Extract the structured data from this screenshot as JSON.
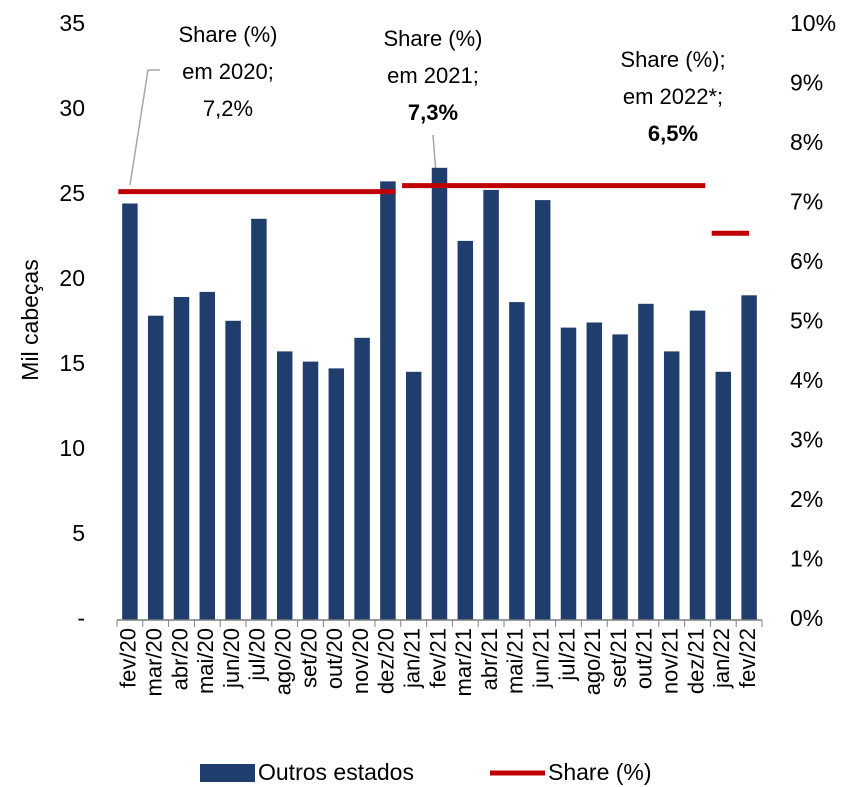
{
  "chart_data": {
    "type": "bar",
    "y_label": "Mil cabeças",
    "categories": [
      "fev/20",
      "mar/20",
      "abr/20",
      "mai/20",
      "jun/20",
      "jul/20",
      "ago/20",
      "set/20",
      "out/20",
      "nov/20",
      "dez/20",
      "jan/21",
      "fev/21",
      "mar/21",
      "abr/21",
      "mai/21",
      "jun/21",
      "jul/21",
      "ago/21",
      "set/21",
      "out/21",
      "nov/21",
      "dez/21",
      "jan/22",
      "fev/22"
    ],
    "series": [
      {
        "name": "Outros estados",
        "type": "bar",
        "color": "#1f3d6d",
        "values": [
          24.5,
          17.9,
          19.0,
          19.3,
          17.6,
          23.6,
          15.8,
          15.2,
          14.8,
          16.6,
          25.8,
          14.6,
          26.6,
          22.3,
          25.3,
          18.7,
          24.7,
          17.2,
          17.5,
          16.8,
          18.6,
          15.8,
          18.2,
          14.6,
          19.1
        ]
      },
      {
        "name": "Share (%)",
        "type": "line",
        "axis": "y2",
        "color": "#c00000",
        "values": [
          7.2,
          7.2,
          7.2,
          7.2,
          7.2,
          7.2,
          7.2,
          7.2,
          7.2,
          7.2,
          7.2,
          7.3,
          7.3,
          7.3,
          7.3,
          7.3,
          7.3,
          7.3,
          7.3,
          7.3,
          7.3,
          7.3,
          7.3,
          6.5,
          6.5
        ]
      }
    ],
    "ylim": [
      0,
      35
    ],
    "yticks": [
      {
        "value": 0,
        "label": "-"
      },
      5,
      10,
      15,
      20,
      25,
      30,
      35
    ],
    "y2lim": [
      0,
      10
    ],
    "y2ticks": [
      {
        "value": 0,
        "label": "0%"
      },
      {
        "value": 1,
        "label": "1%"
      },
      {
        "value": 2,
        "label": "2%"
      },
      {
        "value": 3,
        "label": "3%"
      },
      {
        "value": 4,
        "label": "4%"
      },
      {
        "value": 5,
        "label": "5%"
      },
      {
        "value": 6,
        "label": "6%"
      },
      {
        "value": 7,
        "label": "7%"
      },
      {
        "value": 8,
        "label": "8%"
      },
      {
        "value": 9,
        "label": "9%"
      },
      {
        "value": 10,
        "label": "10%"
      }
    ],
    "legend": "bottom",
    "annotations": [
      {
        "lines": [
          "Share (%)",
          "em 2020;",
          "7,2%"
        ],
        "bold_last": false
      },
      {
        "lines": [
          "Share (%)",
          "em 2021;",
          "7,3%"
        ],
        "bold_last": true
      },
      {
        "lines": [
          "Share (%);",
          "em 2022*;",
          "6,5%"
        ],
        "bold_last": true
      }
    ]
  }
}
